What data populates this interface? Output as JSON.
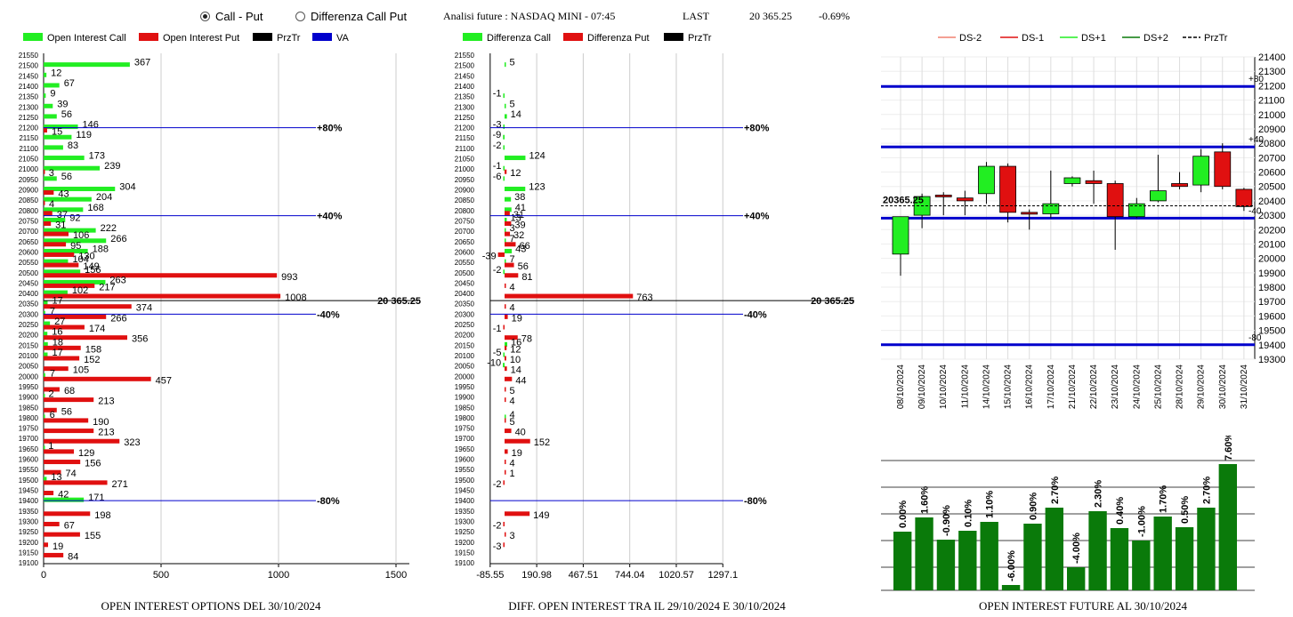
{
  "header": {
    "radio_options": [
      {
        "label": "Call - Put",
        "checked": true
      },
      {
        "label": "Differenza Call Put",
        "checked": false
      }
    ],
    "future_title": "Analisi future : NASDAQ MINI - 07:45",
    "last_label": "LAST",
    "last_value": "20 365.25",
    "change": "-0.69%"
  },
  "colors": {
    "green": "#22ee22",
    "red": "#e01010",
    "blue": "#0000cc",
    "dark_green": "#0a7a0a"
  },
  "price_line_label": "20 365.25",
  "chart_data": [
    {
      "type": "bar",
      "title": "OPEN INTEREST OPTIONS DEL 30/10/2024",
      "legend": [
        "Open Interest Call",
        "Open Interest Put",
        "PrzTr",
        "VA"
      ],
      "legend_colors": [
        "#22ee22",
        "#e01010",
        "#000000",
        "#0000cc"
      ],
      "strikes": [
        21550,
        21500,
        21450,
        21400,
        21350,
        21300,
        21250,
        21200,
        21150,
        21100,
        21050,
        21000,
        20950,
        20900,
        20850,
        20800,
        20750,
        20700,
        20650,
        20600,
        20550,
        20500,
        20450,
        20400,
        20350,
        20300,
        20250,
        20200,
        20150,
        20100,
        20050,
        20000,
        19950,
        19900,
        19850,
        19800,
        19750,
        19700,
        19650,
        19600,
        19550,
        19500,
        19450,
        19400,
        19350,
        19300,
        19250,
        19200,
        19150,
        19100
      ],
      "calls": [
        0,
        367,
        12,
        67,
        9,
        39,
        56,
        146,
        119,
        83,
        173,
        239,
        56,
        304,
        204,
        168,
        92,
        222,
        266,
        188,
        104,
        156,
        263,
        102,
        17,
        7,
        27,
        16,
        18,
        17,
        0,
        7,
        0,
        2,
        0,
        6,
        0,
        0,
        1,
        0,
        0,
        13,
        0,
        171,
        0,
        0,
        0,
        0,
        0,
        0
      ],
      "puts": [
        0,
        0,
        0,
        0,
        0,
        0,
        0,
        15,
        0,
        0,
        0,
        3,
        0,
        43,
        4,
        37,
        31,
        106,
        95,
        130,
        149,
        993,
        217,
        1008,
        374,
        266,
        174,
        356,
        158,
        152,
        105,
        457,
        68,
        213,
        56,
        190,
        213,
        323,
        129,
        156,
        74,
        271,
        42,
        0,
        198,
        67,
        155,
        19,
        84,
        0
      ],
      "xticks": [
        "0",
        "500",
        "1000",
        "1500"
      ],
      "xlim": [
        0,
        1500
      ],
      "levels": [
        {
          "strike": 21200,
          "label": "+80%"
        },
        {
          "strike": 20775,
          "label": "+40%"
        },
        {
          "strike": 20300,
          "label": "-40%"
        },
        {
          "strike": 19400,
          "label": "-80%"
        }
      ]
    },
    {
      "type": "bar",
      "title": "DIFF. OPEN INTEREST TRA IL 29/10/2024 E 30/10/2024",
      "legend": [
        "Differenza Call",
        "Differenza Put",
        "PrzTr"
      ],
      "legend_colors": [
        "#22ee22",
        "#e01010",
        "#000000"
      ],
      "strikes": [
        21550,
        21500,
        21450,
        21400,
        21350,
        21300,
        21250,
        21200,
        21150,
        21100,
        21050,
        21000,
        20950,
        20900,
        20850,
        20800,
        20750,
        20700,
        20650,
        20600,
        20550,
        20500,
        20450,
        20400,
        20350,
        20300,
        20250,
        20200,
        20150,
        20100,
        20050,
        20000,
        19950,
        19900,
        19850,
        19800,
        19750,
        19700,
        19650,
        19600,
        19550,
        19500,
        19450,
        19400,
        19350,
        19300,
        19250,
        19200,
        19150,
        19100
      ],
      "call_diff": [
        0,
        5,
        0,
        0,
        -1,
        5,
        14,
        -3,
        -9,
        -2,
        124,
        -1,
        -6,
        123,
        38,
        41,
        13,
        3,
        7,
        43,
        7,
        -2,
        0,
        0,
        0,
        0,
        0,
        0,
        16,
        -5,
        -10,
        0,
        0,
        0,
        0,
        4,
        0,
        0,
        0,
        0,
        0,
        0,
        0,
        0,
        0,
        0,
        0,
        0,
        0,
        0
      ],
      "put_diff": [
        0,
        0,
        0,
        0,
        0,
        0,
        0,
        0,
        0,
        0,
        0,
        12,
        0,
        0,
        0,
        31,
        39,
        32,
        66,
        -39,
        56,
        81,
        4,
        763,
        4,
        19,
        -1,
        78,
        12,
        10,
        14,
        44,
        5,
        4,
        0,
        5,
        40,
        152,
        19,
        4,
        1,
        -2,
        0,
        0,
        149,
        -2,
        3,
        -3,
        0,
        0
      ],
      "xticks": [
        "-85.55",
        "190.98",
        "467.51",
        "744.04",
        "1020.57",
        "1297.1"
      ],
      "xlim": [
        -85.55,
        1297.1
      ],
      "levels": [
        {
          "strike": 21200,
          "label": "+80%"
        },
        {
          "strike": 20775,
          "label": "+40%"
        },
        {
          "strike": 20300,
          "label": "-40%"
        },
        {
          "strike": 19400,
          "label": "-80%"
        }
      ]
    },
    {
      "type": "candlestick",
      "legend": [
        "DS-2",
        "DS-1",
        "DS+1",
        "DS+2",
        "PrzTr"
      ],
      "legend_colors": [
        "#f08070",
        "#e01010",
        "#22ee22",
        "#0a7a0a",
        "#000000"
      ],
      "dates": [
        "08/10/2024",
        "09/10/2024",
        "10/10/2024",
        "11/10/2024",
        "14/10/2024",
        "15/10/2024",
        "16/10/2024",
        "17/10/2024",
        "21/10/2024",
        "22/10/2024",
        "23/10/2024",
        "24/10/2024",
        "25/10/2024",
        "28/10/2024",
        "29/10/2024",
        "30/10/2024",
        "31/10/2024"
      ],
      "ohlc": [
        [
          20030,
          20290,
          19880,
          20290
        ],
        [
          20300,
          20450,
          20210,
          20430
        ],
        [
          20440,
          20460,
          20300,
          20430
        ],
        [
          20420,
          20470,
          20300,
          20400
        ],
        [
          20450,
          20670,
          20380,
          20640
        ],
        [
          20640,
          20660,
          20250,
          20320
        ],
        [
          20320,
          20340,
          20200,
          20310
        ],
        [
          20310,
          20610,
          20280,
          20380
        ],
        [
          20520,
          20570,
          20500,
          20560
        ],
        [
          20540,
          20610,
          20380,
          20520
        ],
        [
          20520,
          20540,
          20060,
          20290
        ],
        [
          20290,
          20420,
          20280,
          20380
        ],
        [
          20400,
          20720,
          20390,
          20470
        ],
        [
          20520,
          20600,
          20480,
          20500
        ],
        [
          20510,
          20760,
          20460,
          20710
        ],
        [
          20740,
          20800,
          20480,
          20500
        ],
        [
          20480,
          20490,
          20330,
          20360
        ]
      ],
      "ylim": [
        19300,
        21400
      ],
      "yticks": [
        21400,
        21300,
        21200,
        21100,
        21000,
        20900,
        20800,
        20700,
        20600,
        20500,
        20400,
        20300,
        20200,
        20100,
        20000,
        19900,
        19800,
        19700,
        19600,
        19500,
        19400,
        19300
      ],
      "levels": [
        {
          "price": 21195,
          "label": "+80"
        },
        {
          "price": 20775,
          "label": "+40"
        },
        {
          "price": 20280,
          "label": "-40"
        },
        {
          "price": 19400,
          "label": "-80"
        }
      ],
      "przTr": 20365.25,
      "przTr_label": "20365.25"
    },
    {
      "type": "bar",
      "title": "OPEN INTEREST FUTURE AL 30/10/2024",
      "values": [
        0.0,
        1.6,
        -0.9,
        0.1,
        1.1,
        -6.0,
        0.9,
        2.7,
        -4.0,
        2.3,
        0.4,
        -1.0,
        1.7,
        0.5,
        2.7,
        7.6
      ],
      "labels": [
        "0.00%",
        "1.60%",
        "-0.90%",
        "0.10%",
        "1.10%",
        "-6.00%",
        "0.90%",
        "2.70%",
        "-4.00%",
        "2.30%",
        "0.40%",
        "-1.00%",
        "1.70%",
        "0.50%",
        "2.70%",
        "7.60%"
      ]
    }
  ]
}
